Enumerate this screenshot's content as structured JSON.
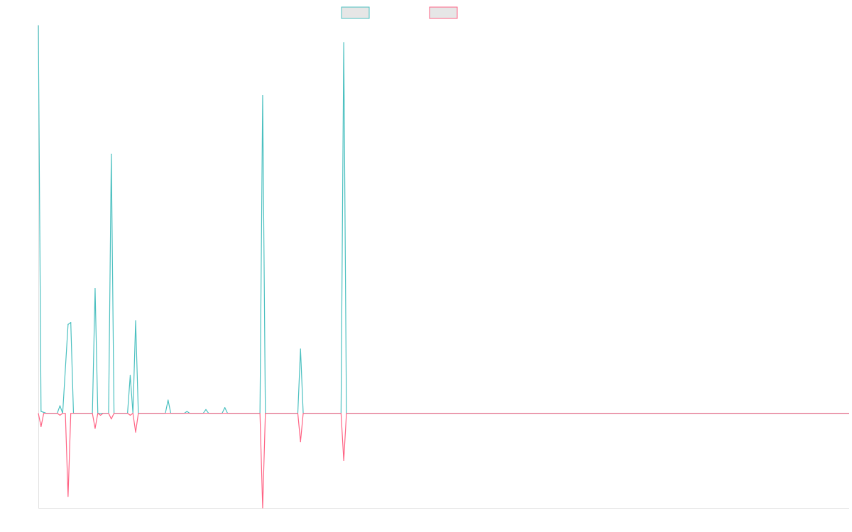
{
  "chart_data": {
    "type": "line",
    "title": "",
    "xlabel": "",
    "ylabel": "",
    "x_range": [
      0,
      300
    ],
    "ylim": [
      -50,
      205
    ],
    "grid": false,
    "legend_placement": "top-center",
    "series": [
      {
        "color": "#4bc0c0",
        "points": [
          [
            0,
            205
          ],
          [
            1,
            1
          ],
          [
            3,
            0
          ],
          [
            5,
            0
          ],
          [
            7,
            0
          ],
          [
            8,
            4
          ],
          [
            9,
            0
          ],
          [
            11,
            47
          ],
          [
            12,
            48
          ],
          [
            13,
            0
          ],
          [
            20,
            0
          ],
          [
            21,
            66
          ],
          [
            22,
            0
          ],
          [
            23,
            0
          ],
          [
            26,
            0
          ],
          [
            27,
            137
          ],
          [
            28,
            0
          ],
          [
            33,
            0
          ],
          [
            34,
            20
          ],
          [
            35,
            0
          ],
          [
            36,
            49
          ],
          [
            37,
            0
          ],
          [
            38,
            0
          ],
          [
            39,
            0
          ],
          [
            40,
            0
          ],
          [
            47,
            0
          ],
          [
            48,
            7
          ],
          [
            49,
            0
          ],
          [
            54,
            0
          ],
          [
            55,
            1
          ],
          [
            56,
            0
          ],
          [
            61,
            0
          ],
          [
            62,
            2
          ],
          [
            63,
            0
          ],
          [
            68,
            0
          ],
          [
            69,
            3
          ],
          [
            70,
            0
          ],
          [
            82,
            0
          ],
          [
            83,
            168
          ],
          [
            84,
            0
          ],
          [
            96,
            0
          ],
          [
            97,
            34
          ],
          [
            98,
            0
          ],
          [
            112,
            0
          ],
          [
            113,
            196
          ],
          [
            114,
            0
          ],
          [
            300,
            0
          ]
        ]
      },
      {
        "color": "#ff6384",
        "points": [
          [
            0,
            0
          ],
          [
            1,
            -7
          ],
          [
            2,
            0
          ],
          [
            7,
            0
          ],
          [
            8,
            -1
          ],
          [
            9,
            0
          ],
          [
            10,
            0
          ],
          [
            11,
            -44
          ],
          [
            12,
            0
          ],
          [
            20,
            0
          ],
          [
            21,
            -8
          ],
          [
            22,
            0
          ],
          [
            23,
            -1
          ],
          [
            24,
            0
          ],
          [
            26,
            0
          ],
          [
            27,
            -3
          ],
          [
            28,
            0
          ],
          [
            33,
            0
          ],
          [
            34,
            -1
          ],
          [
            35,
            0
          ],
          [
            36,
            -10
          ],
          [
            37,
            0
          ],
          [
            82,
            0
          ],
          [
            83,
            -50
          ],
          [
            84,
            0
          ],
          [
            96,
            0
          ],
          [
            97,
            -15
          ],
          [
            98,
            0
          ],
          [
            112,
            0
          ],
          [
            113,
            -25
          ],
          [
            114,
            0
          ],
          [
            300,
            0
          ]
        ]
      }
    ]
  }
}
